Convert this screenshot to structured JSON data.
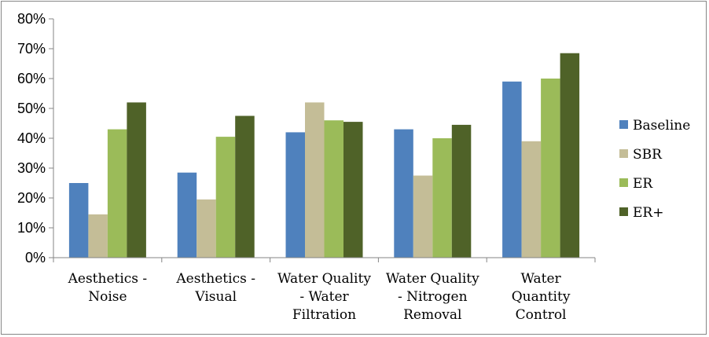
{
  "chart_data": {
    "type": "bar",
    "title": "",
    "xlabel": "",
    "ylabel": "",
    "ylim": [
      0,
      0.8
    ],
    "ytick_labels": [
      "0%",
      "10%",
      "20%",
      "30%",
      "40%",
      "50%",
      "60%",
      "70%",
      "80%"
    ],
    "grid": false,
    "legend_position": "right",
    "categories": [
      [
        "Aesthetics -",
        "Noise"
      ],
      [
        "Aesthetics -",
        "Visual"
      ],
      [
        "Water Quality",
        "- Water",
        "Filtration"
      ],
      [
        "Water Quality",
        "- Nitrogen",
        "Removal"
      ],
      [
        "Water",
        "Quantity",
        "Control"
      ]
    ],
    "series": [
      {
        "name": "Baseline",
        "color": "#4f81bd",
        "values": [
          0.25,
          0.285,
          0.42,
          0.43,
          0.59
        ]
      },
      {
        "name": "SBR",
        "color": "#c4bd97",
        "values": [
          0.145,
          0.195,
          0.52,
          0.275,
          0.39
        ]
      },
      {
        "name": "ER",
        "color": "#9bbb59",
        "values": [
          0.43,
          0.405,
          0.46,
          0.4,
          0.6
        ]
      },
      {
        "name": "ER+",
        "color": "#4f6228",
        "values": [
          0.52,
          0.475,
          0.455,
          0.445,
          0.685
        ]
      }
    ]
  }
}
